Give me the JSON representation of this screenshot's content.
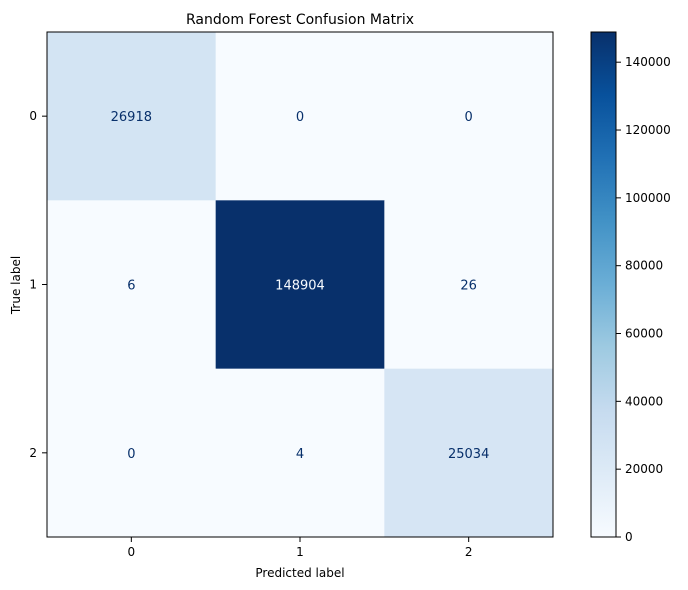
{
  "chart_data": {
    "type": "heatmap",
    "title": "Random Forest Confusion Matrix",
    "xlabel": "Predicted label",
    "ylabel": "True label",
    "x_categories": [
      "0",
      "1",
      "2"
    ],
    "y_categories": [
      "0",
      "1",
      "2"
    ],
    "values": [
      [
        26918,
        0,
        0
      ],
      [
        6,
        148904,
        26
      ],
      [
        0,
        4,
        25034
      ]
    ],
    "colormap": "Blues",
    "colorbar": {
      "min": 0,
      "max": 148904,
      "ticks": [
        0,
        20000,
        40000,
        60000,
        80000,
        100000,
        120000,
        140000
      ]
    },
    "colors": {
      "low": "#f7fbff",
      "high": "#08306b",
      "text_on_light": "#08306b",
      "text_on_dark": "#f7fbff"
    }
  }
}
